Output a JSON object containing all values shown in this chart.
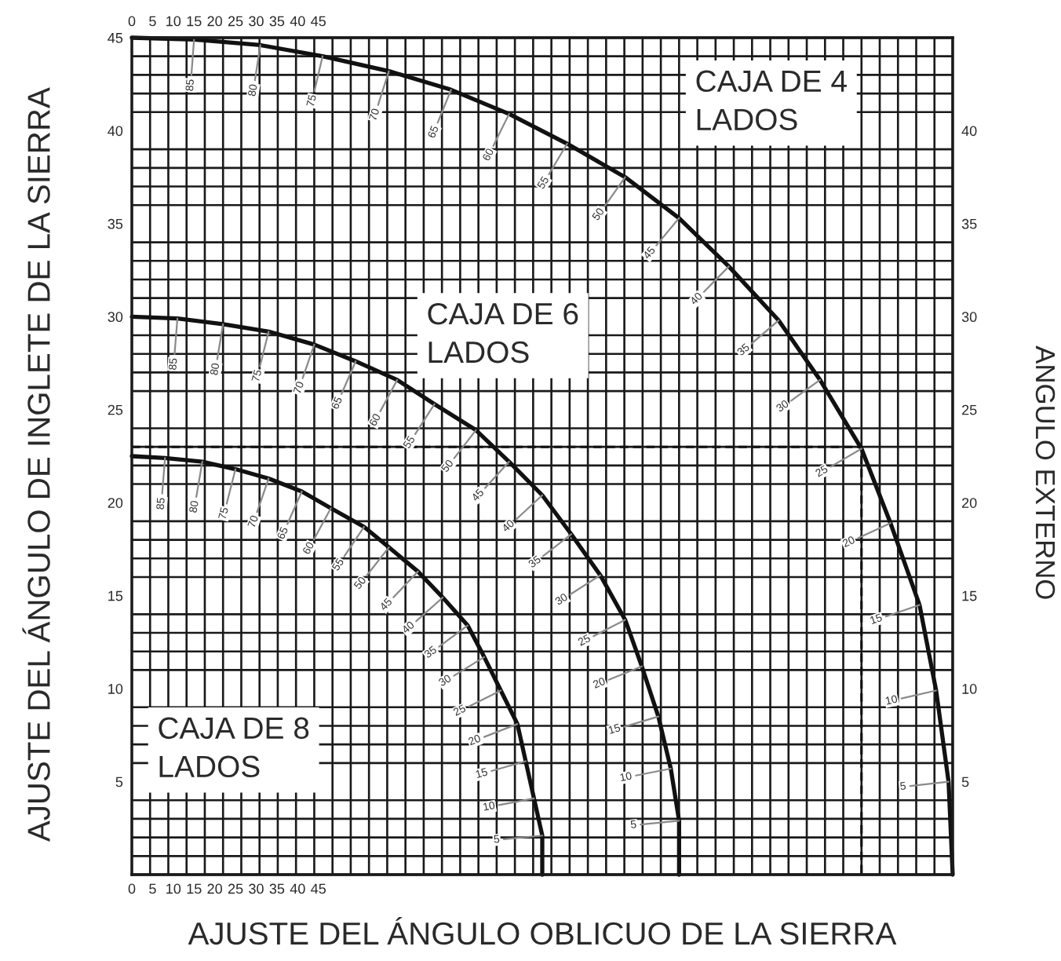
{
  "chart_data": {
    "type": "line",
    "xlabel": "AJUSTE DEL ÁNGULO OBLICUO DE LA SIERRA",
    "ylabel": "AJUSTE DEL ÁNGULO DE INGLETE DE LA SIERRA",
    "y2label": "ANGULO EXTERNO",
    "xlim": [
      0,
      198
    ],
    "xticks": [
      0,
      5,
      10,
      15,
      20,
      25,
      30,
      35,
      40,
      45
    ],
    "x2lim": [
      0,
      198
    ],
    "x2ticks": [
      0,
      5,
      10,
      15,
      20,
      25,
      30,
      35,
      40,
      45
    ],
    "ylim": [
      0,
      45
    ],
    "yticks": [
      5,
      10,
      15,
      20,
      25,
      30,
      35,
      40,
      45
    ],
    "y2lim": [
      0,
      45
    ],
    "y2ticks": [
      5,
      10,
      15,
      20,
      25,
      30,
      35,
      40
    ],
    "grid": true,
    "line_style": "solid",
    "series": [
      {
        "color": "#111111",
        "x": [
          0,
          15,
          31,
          46,
          62,
          77,
          91,
          105,
          119,
          132,
          144,
          156,
          166,
          176,
          183,
          190,
          194,
          197,
          198
        ],
        "values": [
          45,
          44.9,
          44.6,
          44.0,
          43.2,
          42.2,
          40.9,
          39.3,
          37.5,
          35.3,
          32.7,
          29.8,
          26.6,
          22.9,
          18.9,
          14.5,
          9.9,
          5.0,
          0
        ]
      },
      {
        "color": "#111111",
        "x": [
          0,
          11,
          22,
          33,
          44,
          54,
          64,
          73,
          83,
          91,
          99,
          106,
          113,
          119,
          123,
          127,
          130,
          132,
          132
        ],
        "values": [
          30,
          29.9,
          29.6,
          29.2,
          28.5,
          27.6,
          26.6,
          25.3,
          23.9,
          22.2,
          20.4,
          18.3,
          16.1,
          13.7,
          11.2,
          8.5,
          5.7,
          2.9,
          0
        ]
      },
      {
        "color": "#111111",
        "x": [
          0,
          8,
          17,
          25,
          33,
          41,
          48,
          56,
          62,
          69,
          75,
          81,
          85,
          89,
          93,
          95,
          97,
          99,
          99
        ],
        "values": [
          22.5,
          22.4,
          22.2,
          21.8,
          21.3,
          20.6,
          19.7,
          18.7,
          17.6,
          16.3,
          14.9,
          13.4,
          11.7,
          9.9,
          8.1,
          6.1,
          4.1,
          2.1,
          0
        ]
      },
      {
        "color": "#111111",
        "line_style": "dashed",
        "x": [
          0,
          176,
          176
        ],
        "values": [
          23,
          23,
          0
        ]
      }
    ],
    "annotations": [
      "CAJA DE 4\nLADOS",
      "CAJA DE 6\nLADOS",
      "CAJA DE 8\nLADOS",
      {
        "text": "85",
        "x": 15,
        "y": 44.9
      },
      {
        "text": "80",
        "x": 31,
        "y": 44.6
      },
      {
        "text": "75",
        "x": 46,
        "y": 44.0
      },
      {
        "text": "70",
        "x": 62,
        "y": 43.2
      },
      {
        "text": "65",
        "x": 77,
        "y": 42.2
      },
      {
        "text": "60",
        "x": 91,
        "y": 40.9
      },
      {
        "text": "55",
        "x": 105,
        "y": 39.3
      },
      {
        "text": "50",
        "x": 119,
        "y": 37.5
      },
      {
        "text": "45",
        "x": 132,
        "y": 35.3
      },
      {
        "text": "40",
        "x": 144,
        "y": 32.7
      },
      {
        "text": "35",
        "x": 156,
        "y": 29.8
      },
      {
        "text": "30",
        "x": 166,
        "y": 26.6
      },
      {
        "text": "25",
        "x": 176,
        "y": 22.9
      },
      {
        "text": "20",
        "x": 183,
        "y": 18.9
      },
      {
        "text": "15",
        "x": 190,
        "y": 14.5
      },
      {
        "text": "10",
        "x": 194,
        "y": 9.9
      },
      {
        "text": "5",
        "x": 197,
        "y": 5.0
      },
      {
        "text": "85",
        "x": 11,
        "y": 29.9
      },
      {
        "text": "80",
        "x": 22,
        "y": 29.6
      },
      {
        "text": "75",
        "x": 33,
        "y": 29.2
      },
      {
        "text": "70",
        "x": 44,
        "y": 28.5
      },
      {
        "text": "65",
        "x": 54,
        "y": 27.6
      },
      {
        "text": "60",
        "x": 64,
        "y": 26.6
      },
      {
        "text": "55",
        "x": 73,
        "y": 25.3
      },
      {
        "text": "50",
        "x": 83,
        "y": 23.9
      },
      {
        "text": "45",
        "x": 91,
        "y": 22.2
      },
      {
        "text": "40",
        "x": 99,
        "y": 20.4
      },
      {
        "text": "35",
        "x": 106,
        "y": 18.3
      },
      {
        "text": "30",
        "x": 113,
        "y": 16.1
      },
      {
        "text": "25",
        "x": 119,
        "y": 13.7
      },
      {
        "text": "20",
        "x": 123,
        "y": 11.2
      },
      {
        "text": "15",
        "x": 127,
        "y": 8.5
      },
      {
        "text": "10",
        "x": 130,
        "y": 5.7
      },
      {
        "text": "5",
        "x": 132,
        "y": 2.9
      },
      {
        "text": "85",
        "x": 8,
        "y": 22.4
      },
      {
        "text": "80",
        "x": 17,
        "y": 22.2
      },
      {
        "text": "75",
        "x": 25,
        "y": 21.8
      },
      {
        "text": "70",
        "x": 33,
        "y": 21.3
      },
      {
        "text": "65",
        "x": 41,
        "y": 20.6
      },
      {
        "text": "60",
        "x": 48,
        "y": 19.7
      },
      {
        "text": "55",
        "x": 56,
        "y": 18.7
      },
      {
        "text": "50",
        "x": 62,
        "y": 17.6
      },
      {
        "text": "45",
        "x": 69,
        "y": 16.3
      },
      {
        "text": "40",
        "x": 75,
        "y": 14.9
      },
      {
        "text": "35",
        "x": 81,
        "y": 13.4
      },
      {
        "text": "30",
        "x": 85,
        "y": 11.7
      },
      {
        "text": "25",
        "x": 89,
        "y": 9.9
      },
      {
        "text": "20",
        "x": 93,
        "y": 8.1
      },
      {
        "text": "15",
        "x": 95,
        "y": 6.1
      },
      {
        "text": "10",
        "x": 97,
        "y": 4.1
      },
      {
        "text": "5",
        "x": 99,
        "y": 2.1
      }
    ]
  }
}
